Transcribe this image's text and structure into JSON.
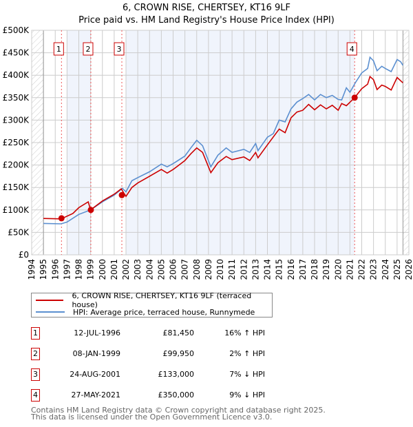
{
  "title": "6, CROWN RISE, CHERTSEY, KT16 9LF",
  "subtitle": "Price paid vs. HM Land Registry's House Price Index (HPI)",
  "colors": {
    "property": "#cc0000",
    "hpi": "#5b8fd0",
    "band": "#f0f4fc"
  },
  "chart_data": {
    "type": "line",
    "title": "6, CROWN RISE, CHERTSEY, KT16 9LF",
    "xlim": [
      1994,
      2026
    ],
    "ylim": [
      0,
      500000
    ],
    "ytick_labels": [
      "£0",
      "£50K",
      "£100K",
      "£150K",
      "£200K",
      "£250K",
      "£300K",
      "£350K",
      "£400K",
      "£450K",
      "£500K"
    ],
    "yticks": [
      0,
      50000,
      100000,
      150000,
      200000,
      250000,
      300000,
      350000,
      400000,
      450000,
      500000
    ],
    "xticks": [
      1994,
      1995,
      1996,
      1997,
      1998,
      1999,
      2000,
      2001,
      2002,
      2003,
      2004,
      2005,
      2006,
      2007,
      2008,
      2009,
      2010,
      2011,
      2012,
      2013,
      2014,
      2015,
      2016,
      2017,
      2018,
      2019,
      2020,
      2021,
      2022,
      2023,
      2024,
      2025,
      2026
    ],
    "grid": true,
    "data_range": [
      1995,
      2025.5
    ],
    "series": [
      {
        "name": "6, CROWN RISE, CHERTSEY, KT16 9LF (terraced house)",
        "color": "#cc0000",
        "x": [
          1995,
          1996.5,
          1997.5,
          1998,
          1998.8,
          1999,
          2000,
          2001,
          2001.6,
          2002,
          2002.5,
          2003,
          2004,
          2005,
          2005.5,
          2006,
          2007,
          2007.5,
          2008,
          2008.5,
          2009.2,
          2009.8,
          2010.5,
          2011,
          2012,
          2012.5,
          2013,
          2013.2,
          2014,
          2015,
          2015.5,
          2016,
          2016.5,
          2017,
          2017.5,
          2018,
          2018.5,
          2019,
          2019.5,
          2020,
          2020.3,
          2020.7,
          2021.4,
          2022,
          2022.5,
          2022.7,
          2023,
          2023.3,
          2023.7,
          2024,
          2024.5,
          2025,
          2025.5
        ],
        "values": [
          81000,
          80000,
          92000,
          105000,
          118000,
          100000,
          120000,
          135000,
          147000,
          130000,
          150000,
          160000,
          175000,
          190000,
          182000,
          190000,
          210000,
          225000,
          238000,
          228000,
          183000,
          205000,
          219000,
          212000,
          218000,
          210000,
          228000,
          216000,
          245000,
          280000,
          272000,
          305000,
          318000,
          322000,
          335000,
          323000,
          334000,
          325000,
          333000,
          322000,
          337000,
          332000,
          350000,
          370000,
          380000,
          397000,
          390000,
          368000,
          378000,
          375000,
          367000,
          395000,
          383000
        ]
      },
      {
        "name": "HPI: Average price, terraced house, Runnymede",
        "color": "#5b8fd0",
        "x": [
          1995,
          1996.5,
          1997,
          1998,
          1999,
          2000,
          2001,
          2001.7,
          2002,
          2002.5,
          2003,
          2004,
          2005,
          2005.5,
          2006,
          2007,
          2007.5,
          2008,
          2008.5,
          2009.2,
          2009.8,
          2010.5,
          2011,
          2012,
          2012.5,
          2013,
          2013.2,
          2014,
          2014.5,
          2015,
          2015.5,
          2016,
          2016.5,
          2017,
          2017.5,
          2018,
          2018.5,
          2019,
          2019.5,
          2020,
          2020.3,
          2020.7,
          2021,
          2021.5,
          2022,
          2022.5,
          2022.7,
          2023,
          2023.3,
          2023.7,
          2024,
          2024.5,
          2025,
          2025.3,
          2025.5
        ],
        "values": [
          70000,
          69000,
          73000,
          90000,
          100000,
          118000,
          133000,
          148000,
          140000,
          165000,
          172000,
          185000,
          202000,
          196000,
          203000,
          220000,
          238000,
          255000,
          243000,
          196000,
          222000,
          238000,
          228000,
          235000,
          228000,
          248000,
          232000,
          262000,
          270000,
          300000,
          296000,
          325000,
          340000,
          348000,
          357000,
          345000,
          357000,
          350000,
          355000,
          346000,
          345000,
          372000,
          362000,
          385000,
          405000,
          415000,
          440000,
          432000,
          410000,
          420000,
          415000,
          408000,
          435000,
          430000,
          422000
        ]
      }
    ],
    "sales": [
      {
        "label": "1",
        "x": 1996.53,
        "price": 81450
      },
      {
        "label": "2",
        "x": 1999.02,
        "price": 99950
      },
      {
        "label": "3",
        "x": 2001.65,
        "price": 133000
      },
      {
        "label": "4",
        "x": 2021.4,
        "price": 350000
      }
    ]
  },
  "legend": {
    "property": "6, CROWN RISE, CHERTSEY, KT16 9LF (terraced house)",
    "hpi": "HPI: Average price, terraced house, Runnymede"
  },
  "transactions": [
    {
      "num": "1",
      "date": "12-JUL-1996",
      "price": "£81,450",
      "hpi": "16% ↑ HPI"
    },
    {
      "num": "2",
      "date": "08-JAN-1999",
      "price": "£99,950",
      "hpi": "2% ↑ HPI"
    },
    {
      "num": "3",
      "date": "24-AUG-2001",
      "price": "£133,000",
      "hpi": "7% ↓ HPI"
    },
    {
      "num": "4",
      "date": "27-MAY-2021",
      "price": "£350,000",
      "hpi": "9% ↓ HPI"
    }
  ],
  "footer": {
    "line1": "Contains HM Land Registry data © Crown copyright and database right 2025.",
    "line2": "This data is licensed under the Open Government Licence v3.0."
  }
}
